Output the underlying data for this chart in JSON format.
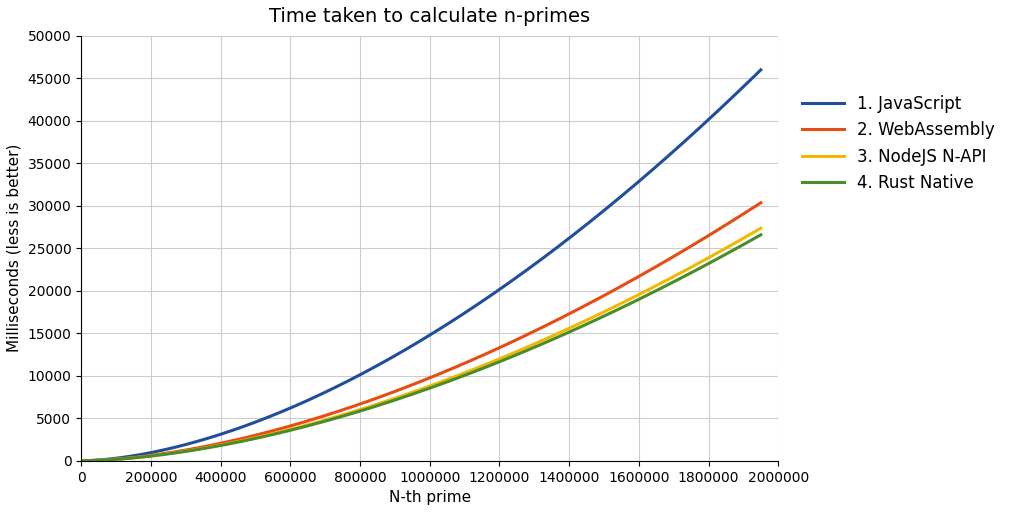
{
  "title": "Time taken to calculate n-primes",
  "xlabel": "N-th prime",
  "ylabel": "Milliseconds (less is better)",
  "xlim": [
    0,
    2000000
  ],
  "ylim": [
    0,
    50000
  ],
  "series": [
    {
      "label": "1. JavaScript",
      "color": "#1f4e9e",
      "scale": 1.0
    },
    {
      "label": "2. WebAssembly",
      "color": "#e84c12",
      "scale": 0.66
    },
    {
      "label": "3. NodeJS N-API",
      "color": "#f0b800",
      "scale": 0.595
    },
    {
      "label": "4. Rust Native",
      "color": "#4a8c2a",
      "scale": 0.578
    }
  ],
  "js_end_value": 46000,
  "x_end": 1950000,
  "power": 1.7,
  "background_color": "#ffffff",
  "grid_color": "#cccccc",
  "title_fontsize": 14,
  "axis_fontsize": 11,
  "tick_fontsize": 10,
  "legend_fontsize": 12,
  "line_width": 2.2,
  "figsize": [
    10.24,
    5.12
  ],
  "dpi": 100
}
